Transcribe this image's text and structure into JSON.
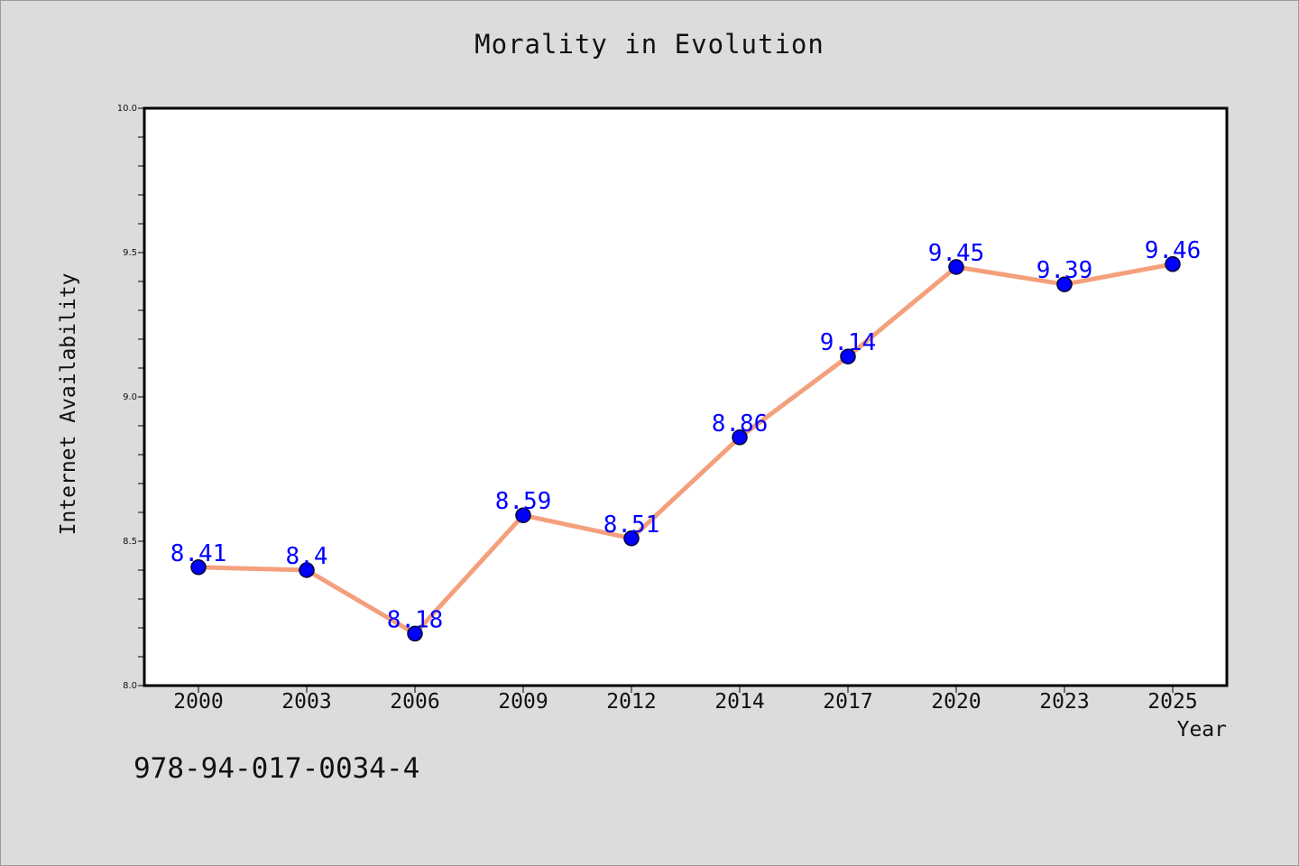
{
  "identifier": "978-94-017-0034-4",
  "colors": {
    "background": "#dcdcdc",
    "plot_background": "#ffffff",
    "line": "#f4a07c",
    "marker": "#0000ff",
    "marker_edge": "#000033",
    "data_label": "#0000ff"
  },
  "chart_data": {
    "type": "line",
    "title": "Morality in Evolution",
    "xlabel": "Year",
    "ylabel": "Internet Availability",
    "categories": [
      "2000",
      "2003",
      "2006",
      "2009",
      "2012",
      "2014",
      "2017",
      "2020",
      "2023",
      "2025"
    ],
    "series": [
      {
        "values": [
          8.41,
          8.4,
          8.18,
          8.59,
          8.51,
          8.86,
          9.14,
          9.45,
          9.39,
          9.46
        ],
        "value_labels": [
          "8.41",
          "8.4",
          "8.18",
          "8.59",
          "8.51",
          "8.86",
          "9.14",
          "9.45",
          "9.39",
          "9.46"
        ]
      }
    ],
    "ylim": [
      8.0,
      10.0
    ],
    "yticks": [
      "8.0",
      "8.5",
      "9.0",
      "9.5",
      "10.0"
    ],
    "grid": false,
    "legend": "none"
  }
}
